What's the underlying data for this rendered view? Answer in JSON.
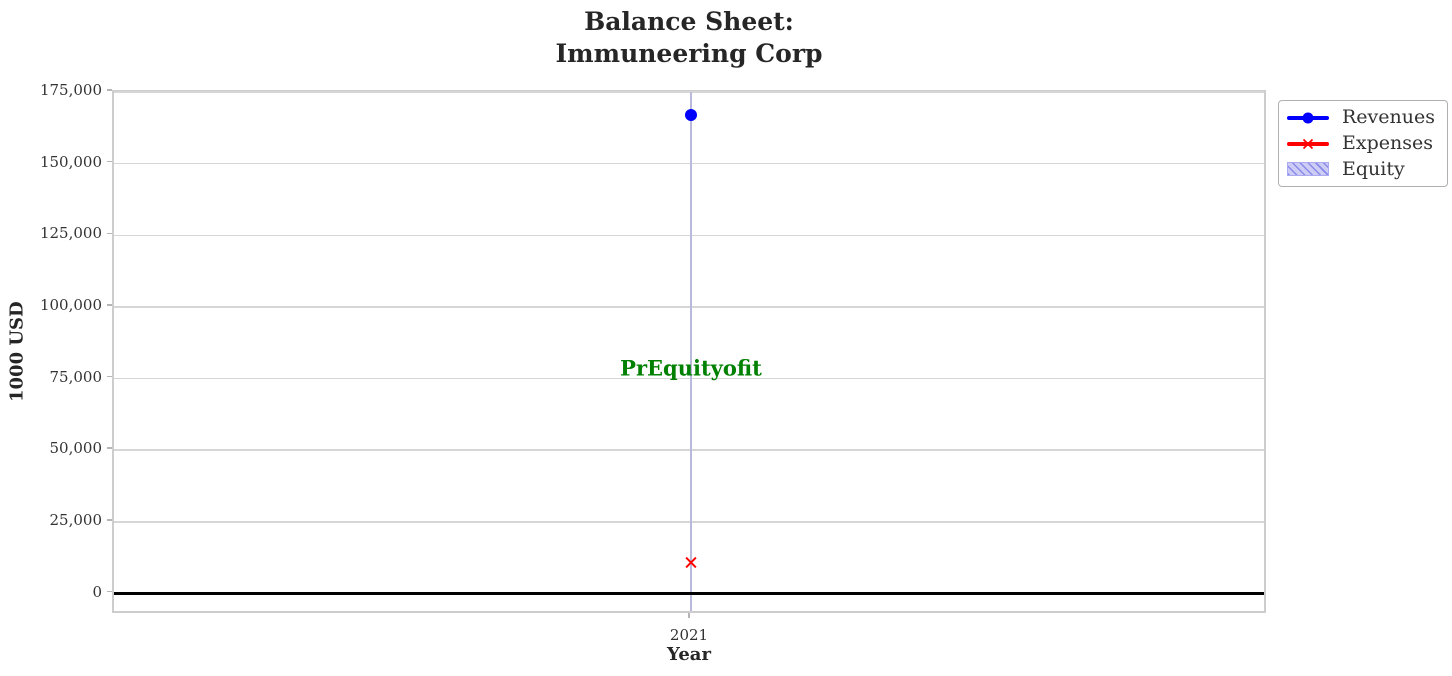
{
  "figure": {
    "title": "Balance Sheet:\nImmuneering Corp",
    "xlabel": "Year",
    "ylabel": "1000 USD"
  },
  "legend": {
    "position": "outside upper right",
    "items": [
      {
        "label": "Revenues",
        "type": "line-circle",
        "color": "#0000ff"
      },
      {
        "label": "Expenses",
        "type": "line-x",
        "color": "#ff0000"
      },
      {
        "label": "Equity",
        "type": "patch-hatch",
        "fill": "#ccccf5",
        "hatch": "#8a8aea",
        "border": "#aaaaf0"
      }
    ]
  },
  "chart_data": {
    "type": "scatter",
    "title": "Balance Sheet:\nImmuneering Corp",
    "xlabel": "Year",
    "ylabel": "1000 USD",
    "x": [
      2021
    ],
    "series": [
      {
        "name": "Revenues",
        "marker": "circle",
        "color": "#0000ff",
        "values": [
          167000
        ]
      },
      {
        "name": "Expenses",
        "marker": "x",
        "color": "#ff0000",
        "values": [
          10700
        ]
      },
      {
        "name": "Equity",
        "marker": "none",
        "color": "#ccccf5",
        "values": []
      }
    ],
    "annotation": {
      "text": "PrEquityofit",
      "x": 2021,
      "y": 78700,
      "color": "#008000"
    },
    "xlim": [
      2020.5,
      2021.5
    ],
    "ylim": [
      -7500,
      175000
    ],
    "xticks": [
      {
        "value": 2021,
        "label": "2021"
      }
    ],
    "yticks": [
      {
        "value": 0,
        "label": "0"
      },
      {
        "value": 25000,
        "label": "25,000"
      },
      {
        "value": 50000,
        "label": "50,000"
      },
      {
        "value": 75000,
        "label": "75,000"
      },
      {
        "value": 100000,
        "label": "100,000"
      },
      {
        "value": 125000,
        "label": "125,000"
      },
      {
        "value": 150000,
        "label": "150,000"
      },
      {
        "value": 175000,
        "label": "175,000"
      }
    ],
    "grid": true,
    "zero_line": {
      "value": 0,
      "color": "#000000"
    },
    "colors": {
      "grid_h": "#d6d6d6",
      "grid_v": "#b9b9dc",
      "frame": "#cdcdcd"
    }
  }
}
